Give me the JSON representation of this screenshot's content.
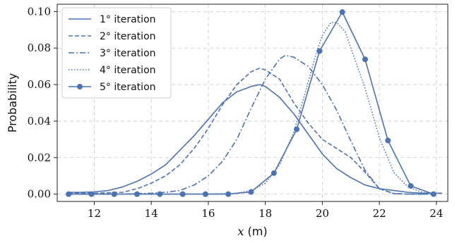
{
  "chart_data": {
    "type": "line",
    "xlabel_var": "x",
    "xlabel_unit": " (m)",
    "ylabel": "Probability",
    "xlim": [
      10.7,
      24.4
    ],
    "ylim": [
      -0.004,
      0.104
    ],
    "xticks": [
      12,
      14,
      16,
      18,
      20,
      22,
      24
    ],
    "yticks": [
      0.0,
      0.02,
      0.04,
      0.06,
      0.08,
      0.1
    ],
    "ytick_labels": [
      "0.00",
      "0.02",
      "0.04",
      "0.06",
      "0.08",
      "0.10"
    ],
    "grid": true,
    "legend_position": "top-left",
    "color": "#4c72b0",
    "series": [
      {
        "name": "1° iteration",
        "style": "solid",
        "markers": false,
        "x": [
          11.1,
          11.5,
          12.0,
          12.5,
          13.0,
          13.5,
          14.0,
          14.5,
          15.0,
          15.5,
          16.0,
          16.5,
          17.0,
          17.5,
          17.8,
          18.0,
          18.5,
          19.0,
          19.5,
          20.0,
          20.5,
          21.0,
          21.5,
          22.0,
          22.5,
          23.0,
          23.5,
          24.2
        ],
        "y": [
          0.001,
          0.001,
          0.0012,
          0.002,
          0.004,
          0.007,
          0.011,
          0.016,
          0.024,
          0.032,
          0.041,
          0.05,
          0.056,
          0.059,
          0.06,
          0.059,
          0.053,
          0.044,
          0.033,
          0.022,
          0.014,
          0.009,
          0.005,
          0.003,
          0.002,
          0.001,
          0.0005,
          0.0005
        ]
      },
      {
        "name": "2° iteration",
        "style": "dashed",
        "markers": false,
        "x": [
          11.1,
          12.0,
          13.0,
          13.5,
          14.0,
          14.5,
          15.0,
          15.5,
          16.0,
          16.5,
          17.0,
          17.5,
          17.8,
          18.0,
          18.5,
          19.0,
          19.5,
          20.0,
          20.5,
          21.0,
          21.5,
          22.0,
          22.5,
          23.0,
          24.0
        ],
        "y": [
          0.0005,
          0.0005,
          0.001,
          0.003,
          0.006,
          0.01,
          0.016,
          0.025,
          0.036,
          0.049,
          0.06,
          0.067,
          0.069,
          0.068,
          0.063,
          0.05,
          0.039,
          0.03,
          0.025,
          0.02,
          0.012,
          0.003,
          0.0003,
          0.0,
          0.0
        ]
      },
      {
        "name": "3° iteration",
        "style": "dashdot",
        "markers": false,
        "x": [
          11.1,
          13.0,
          14.0,
          14.5,
          15.0,
          15.5,
          16.0,
          16.5,
          17.0,
          17.5,
          18.0,
          18.5,
          18.7,
          19.0,
          19.5,
          20.0,
          20.5,
          21.0,
          21.5,
          22.0,
          22.5,
          23.0,
          24.0
        ],
        "y": [
          0.0,
          0.0,
          0.0005,
          0.001,
          0.002,
          0.005,
          0.01,
          0.018,
          0.03,
          0.047,
          0.063,
          0.074,
          0.076,
          0.075,
          0.07,
          0.06,
          0.046,
          0.029,
          0.013,
          0.003,
          0.0004,
          0.0,
          0.0
        ]
      },
      {
        "name": "4° iteration",
        "style": "dotted",
        "markers": false,
        "x": [
          11.1,
          16.0,
          17.0,
          17.5,
          18.0,
          18.5,
          19.0,
          19.5,
          19.8,
          20.0,
          20.3,
          20.5,
          20.8,
          21.0,
          21.5,
          22.0,
          22.5,
          23.0,
          23.5,
          24.0
        ],
        "y": [
          0.0,
          0.0,
          0.0005,
          0.002,
          0.006,
          0.016,
          0.034,
          0.061,
          0.078,
          0.087,
          0.094,
          0.094,
          0.089,
          0.08,
          0.058,
          0.031,
          0.012,
          0.004,
          0.001,
          0.0
        ]
      },
      {
        "name": "5° iteration",
        "style": "solid",
        "markers": true,
        "x": [
          11.1,
          11.9,
          12.7,
          13.5,
          14.3,
          15.1,
          15.9,
          16.7,
          17.5,
          18.3,
          19.1,
          19.9,
          20.7,
          21.5,
          22.3,
          23.1,
          23.9
        ],
        "y": [
          0.0,
          0.0,
          0.0,
          0.0,
          0.0,
          0.0,
          0.0,
          0.0,
          0.0012,
          0.0115,
          0.0355,
          0.0783,
          0.0997,
          0.0738,
          0.0294,
          0.0045,
          0.0
        ]
      }
    ]
  }
}
